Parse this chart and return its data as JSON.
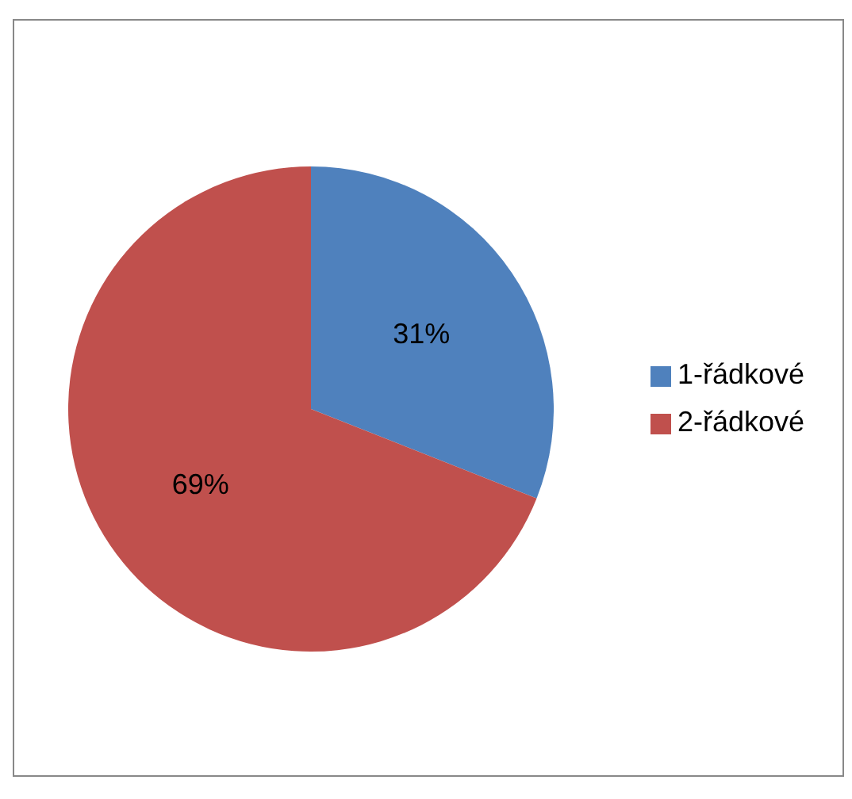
{
  "chart_data": {
    "type": "pie",
    "categories": [
      "1-řádkové",
      "2-řádkové"
    ],
    "values": [
      31,
      69
    ],
    "colors": [
      "#4f81bd",
      "#c0504d"
    ],
    "value_labels": [
      "31%",
      "69%"
    ],
    "legend": "right"
  }
}
